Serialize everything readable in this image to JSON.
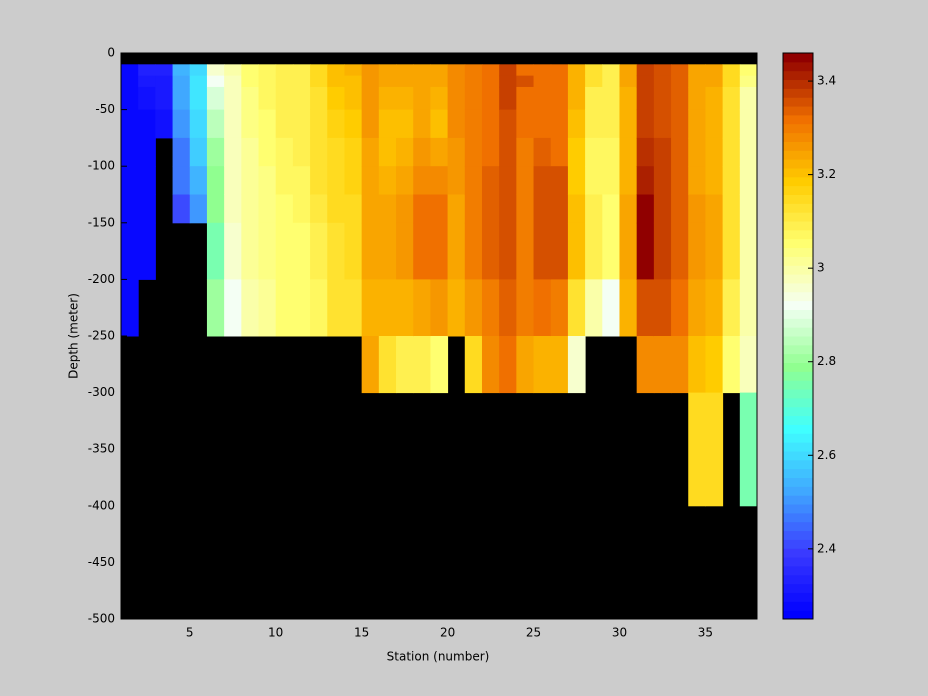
{
  "chart_data": {
    "type": "heatmap",
    "x_label": "Station (number)",
    "y_label": "Depth (meter)",
    "x": [
      1,
      2,
      3,
      4,
      5,
      6,
      7,
      8,
      9,
      10,
      11,
      12,
      13,
      14,
      15,
      16,
      17,
      18,
      19,
      20,
      21,
      22,
      23,
      24,
      25,
      26,
      27,
      28,
      29,
      30,
      31,
      32,
      33,
      34,
      35,
      36,
      37,
      38
    ],
    "y": [
      0,
      -10,
      -20,
      -30,
      -50,
      -75,
      -100,
      -125,
      -150,
      -200,
      -250,
      -300,
      -400,
      -500
    ],
    "values": [
      [
        null,
        2.27,
        2.27,
        2.27,
        2.27,
        2.27,
        2.27,
        2.27,
        2.27,
        2.27,
        null,
        null,
        null
      ],
      [
        null,
        2.33,
        2.31,
        2.3,
        2.28,
        2.27,
        2.27,
        2.27,
        2.27,
        null,
        null,
        null,
        null
      ],
      [
        null,
        2.34,
        2.31,
        2.31,
        2.29,
        null,
        null,
        null,
        null,
        null,
        null,
        null,
        null
      ],
      [
        null,
        2.55,
        2.53,
        2.52,
        2.5,
        2.47,
        2.46,
        2.42,
        null,
        null,
        null,
        null,
        null
      ],
      [
        null,
        2.6,
        2.62,
        2.62,
        2.6,
        2.58,
        2.55,
        2.5,
        null,
        null,
        null,
        null,
        null
      ],
      [
        null,
        2.95,
        2.92,
        2.88,
        2.85,
        2.8,
        2.78,
        2.78,
        2.75,
        2.8,
        null,
        null,
        null
      ],
      [
        null,
        3.0,
        2.98,
        2.98,
        2.97,
        2.97,
        2.97,
        2.97,
        2.96,
        2.93,
        null,
        null,
        null
      ],
      [
        null,
        3.06,
        3.05,
        3.04,
        3.03,
        3.02,
        3.02,
        3.02,
        3.01,
        3.0,
        null,
        null,
        null
      ],
      [
        null,
        3.08,
        3.08,
        3.07,
        3.06,
        3.05,
        3.04,
        3.03,
        3.03,
        3.02,
        null,
        null,
        null
      ],
      [
        null,
        3.1,
        3.1,
        3.1,
        3.1,
        3.08,
        3.07,
        3.06,
        3.05,
        3.05,
        null,
        null,
        null
      ],
      [
        null,
        3.1,
        3.1,
        3.1,
        3.1,
        3.09,
        3.08,
        3.07,
        3.06,
        3.05,
        null,
        null,
        null
      ],
      [
        null,
        3.15,
        3.15,
        3.13,
        3.12,
        3.12,
        3.12,
        3.11,
        3.1,
        3.08,
        null,
        null,
        null
      ],
      [
        null,
        3.2,
        3.2,
        3.18,
        3.17,
        3.15,
        3.15,
        3.14,
        3.13,
        3.12,
        null,
        null,
        null
      ],
      [
        null,
        3.22,
        3.2,
        3.2,
        3.18,
        3.17,
        3.16,
        3.15,
        3.14,
        3.13,
        null,
        null,
        null
      ],
      [
        null,
        3.26,
        3.27,
        3.27,
        3.26,
        3.25,
        3.25,
        3.25,
        3.24,
        3.22,
        3.25,
        null,
        null
      ],
      [
        null,
        3.24,
        3.24,
        3.23,
        3.2,
        3.2,
        3.22,
        3.24,
        3.24,
        3.22,
        3.12,
        null,
        null
      ],
      [
        null,
        3.24,
        3.24,
        3.23,
        3.2,
        3.22,
        3.24,
        3.26,
        3.26,
        3.22,
        3.1,
        null,
        null
      ],
      [
        null,
        3.25,
        3.25,
        3.25,
        3.24,
        3.26,
        3.28,
        3.32,
        3.32,
        3.24,
        3.1,
        null,
        null
      ],
      [
        null,
        3.25,
        3.25,
        3.22,
        3.2,
        3.24,
        3.28,
        3.32,
        3.32,
        3.26,
        3.06,
        null,
        null
      ],
      [
        null,
        3.28,
        3.28,
        3.28,
        3.28,
        3.26,
        3.27,
        3.25,
        3.24,
        3.22,
        null,
        null,
        null
      ],
      [
        null,
        3.3,
        3.3,
        3.3,
        3.3,
        3.3,
        3.3,
        3.3,
        3.3,
        3.26,
        3.15,
        null,
        null
      ],
      [
        null,
        3.32,
        3.32,
        3.32,
        3.32,
        3.32,
        3.34,
        3.34,
        3.34,
        3.3,
        3.28,
        null,
        null
      ],
      [
        null,
        3.38,
        3.38,
        3.38,
        3.36,
        3.36,
        3.35,
        3.35,
        3.35,
        3.33,
        3.32,
        null,
        null
      ],
      [
        null,
        3.32,
        3.35,
        3.32,
        3.32,
        3.3,
        3.3,
        3.3,
        3.3,
        3.3,
        3.25,
        null,
        null
      ],
      [
        null,
        3.32,
        3.32,
        3.32,
        3.32,
        3.33,
        3.36,
        3.36,
        3.36,
        3.32,
        3.22,
        null,
        null
      ],
      [
        null,
        3.32,
        3.32,
        3.32,
        3.32,
        3.32,
        3.36,
        3.36,
        3.36,
        3.3,
        3.22,
        null,
        null
      ],
      [
        null,
        3.22,
        3.22,
        3.22,
        3.2,
        3.18,
        3.18,
        3.2,
        3.2,
        3.12,
        2.95,
        null,
        null
      ],
      [
        null,
        3.12,
        3.12,
        3.1,
        3.1,
        3.08,
        3.08,
        3.1,
        3.1,
        3.0,
        null,
        null,
        null
      ],
      [
        null,
        3.1,
        3.1,
        3.1,
        3.1,
        3.08,
        3.08,
        3.06,
        3.06,
        2.92,
        null,
        null,
        null
      ],
      [
        null,
        3.25,
        3.25,
        3.22,
        3.22,
        3.22,
        3.22,
        3.24,
        3.24,
        3.22,
        null,
        null,
        null
      ],
      [
        null,
        3.38,
        3.38,
        3.38,
        3.38,
        3.4,
        3.42,
        3.45,
        3.45,
        3.36,
        3.28,
        null,
        null
      ],
      [
        null,
        3.35,
        3.35,
        3.35,
        3.35,
        3.37,
        3.38,
        3.38,
        3.38,
        3.36,
        3.28,
        null,
        null
      ],
      [
        null,
        3.33,
        3.33,
        3.33,
        3.33,
        3.33,
        3.34,
        3.34,
        3.34,
        3.32,
        3.28,
        null,
        null
      ],
      [
        null,
        3.25,
        3.25,
        3.25,
        3.24,
        3.24,
        3.25,
        3.26,
        3.26,
        3.24,
        3.2,
        3.15,
        null
      ],
      [
        null,
        3.24,
        3.24,
        3.22,
        3.22,
        3.22,
        3.23,
        3.24,
        3.24,
        3.22,
        3.18,
        3.15,
        null
      ],
      [
        null,
        3.15,
        3.14,
        3.13,
        3.12,
        3.12,
        3.12,
        3.12,
        3.12,
        3.1,
        3.06,
        null,
        null
      ],
      [
        null,
        3.05,
        3.03,
        3.0,
        3.0,
        3.0,
        3.0,
        3.0,
        3.0,
        3.0,
        2.98,
        2.75,
        null
      ]
    ],
    "xlim": [
      1,
      38
    ],
    "ylim": [
      -500,
      0
    ],
    "xticks": [
      5,
      10,
      15,
      20,
      25,
      30,
      35
    ],
    "yticks": [
      0,
      -50,
      -100,
      -150,
      -200,
      -250,
      -300,
      -350,
      -400,
      -450,
      -500
    ],
    "clim": [
      2.25,
      3.46
    ],
    "cticks": [
      2.4,
      2.6,
      2.8,
      3,
      3.2,
      3.4
    ],
    "colormap": [
      "#0000ff",
      "#3a3aff",
      "#40a8ff",
      "#40ffff",
      "#90ff90",
      "#f4fff4",
      "#ffff70",
      "#ffcc00",
      "#f07000",
      "#900000"
    ],
    "missing_color": "#000000"
  }
}
